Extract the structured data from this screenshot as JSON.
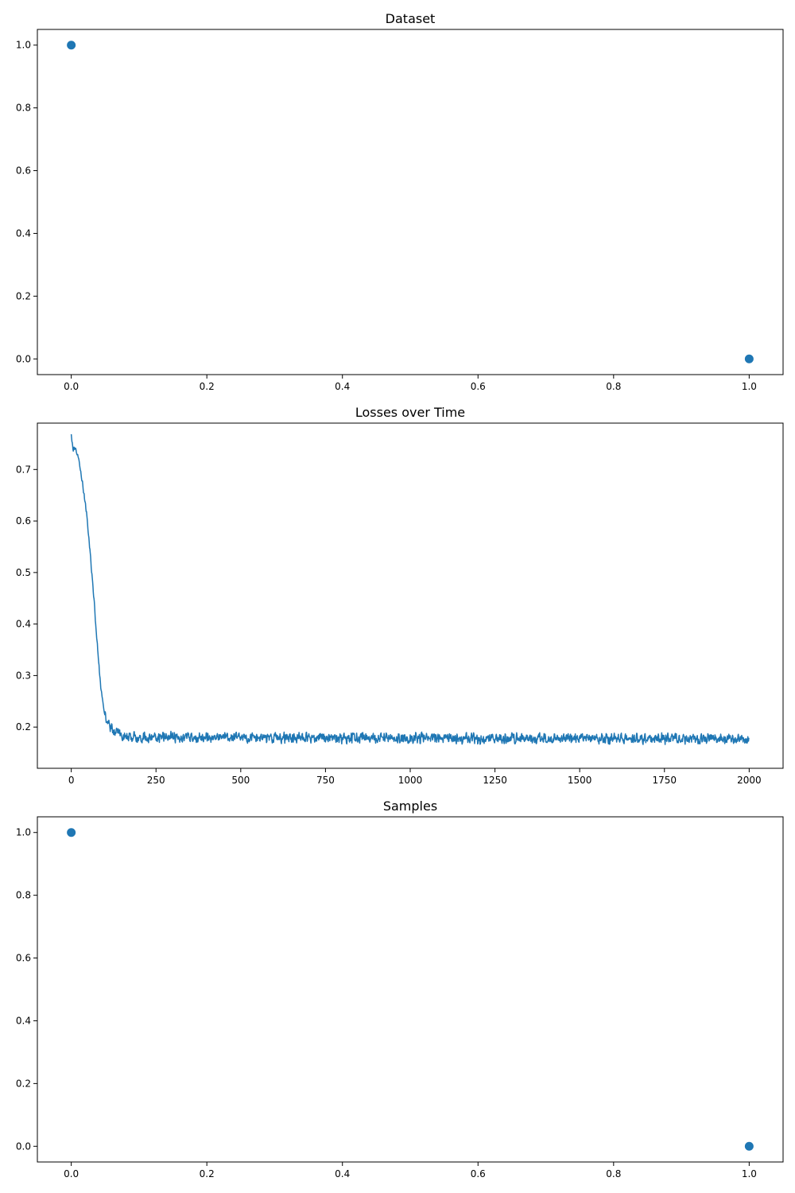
{
  "chart_data": [
    {
      "type": "scatter",
      "title": "Dataset",
      "xlabel": "",
      "ylabel": "",
      "xlim": [
        -0.05,
        1.05
      ],
      "ylim": [
        -0.05,
        1.05
      ],
      "xticks": [
        0.0,
        0.2,
        0.4,
        0.6,
        0.8,
        1.0
      ],
      "xtick_labels": [
        "0.0",
        "0.2",
        "0.4",
        "0.6",
        "0.8",
        "1.0"
      ],
      "yticks": [
        0.0,
        0.2,
        0.4,
        0.6,
        0.8,
        1.0
      ],
      "ytick_labels": [
        "0.0",
        "0.2",
        "0.4",
        "0.6",
        "0.8",
        "1.0"
      ],
      "grid": false,
      "color": "#1f77b4",
      "points": [
        {
          "x": 0.0,
          "y": 1.0
        },
        {
          "x": 1.0,
          "y": 0.0
        }
      ]
    },
    {
      "type": "line",
      "title": "Losses over Time",
      "xlabel": "",
      "ylabel": "",
      "xlim": [
        -100,
        2100
      ],
      "ylim": [
        0.12,
        0.79
      ],
      "xticks": [
        0,
        250,
        500,
        750,
        1000,
        1250,
        1500,
        1750,
        2000
      ],
      "xtick_labels": [
        "0",
        "250",
        "500",
        "750",
        "1000",
        "1250",
        "1500",
        "1750",
        "2000"
      ],
      "yticks": [
        0.2,
        0.3,
        0.4,
        0.5,
        0.6,
        0.7
      ],
      "ytick_labels": [
        "0.2",
        "0.3",
        "0.4",
        "0.5",
        "0.6",
        "0.7"
      ],
      "grid": false,
      "color": "#1f77b4",
      "n_points": 2000,
      "keypoints": [
        {
          "x": 0,
          "y": 0.765
        },
        {
          "x": 5,
          "y": 0.74
        },
        {
          "x": 15,
          "y": 0.735
        },
        {
          "x": 25,
          "y": 0.71
        },
        {
          "x": 35,
          "y": 0.665
        },
        {
          "x": 45,
          "y": 0.615
        },
        {
          "x": 55,
          "y": 0.545
        },
        {
          "x": 65,
          "y": 0.465
        },
        {
          "x": 75,
          "y": 0.375
        },
        {
          "x": 85,
          "y": 0.29
        },
        {
          "x": 95,
          "y": 0.235
        },
        {
          "x": 110,
          "y": 0.205
        },
        {
          "x": 130,
          "y": 0.19
        },
        {
          "x": 160,
          "y": 0.18
        },
        {
          "x": 2000,
          "y": 0.177
        }
      ],
      "noise_amplitude": 0.012
    },
    {
      "type": "scatter",
      "title": "Samples",
      "xlabel": "",
      "ylabel": "",
      "xlim": [
        -0.05,
        1.05
      ],
      "ylim": [
        -0.05,
        1.05
      ],
      "xticks": [
        0.0,
        0.2,
        0.4,
        0.6,
        0.8,
        1.0
      ],
      "xtick_labels": [
        "0.0",
        "0.2",
        "0.4",
        "0.6",
        "0.8",
        "1.0"
      ],
      "yticks": [
        0.0,
        0.2,
        0.4,
        0.6,
        0.8,
        1.0
      ],
      "ytick_labels": [
        "0.0",
        "0.2",
        "0.4",
        "0.6",
        "0.8",
        "1.0"
      ],
      "grid": false,
      "color": "#1f77b4",
      "points": [
        {
          "x": 0.0,
          "y": 1.0
        },
        {
          "x": 1.0,
          "y": 0.0
        }
      ]
    }
  ]
}
